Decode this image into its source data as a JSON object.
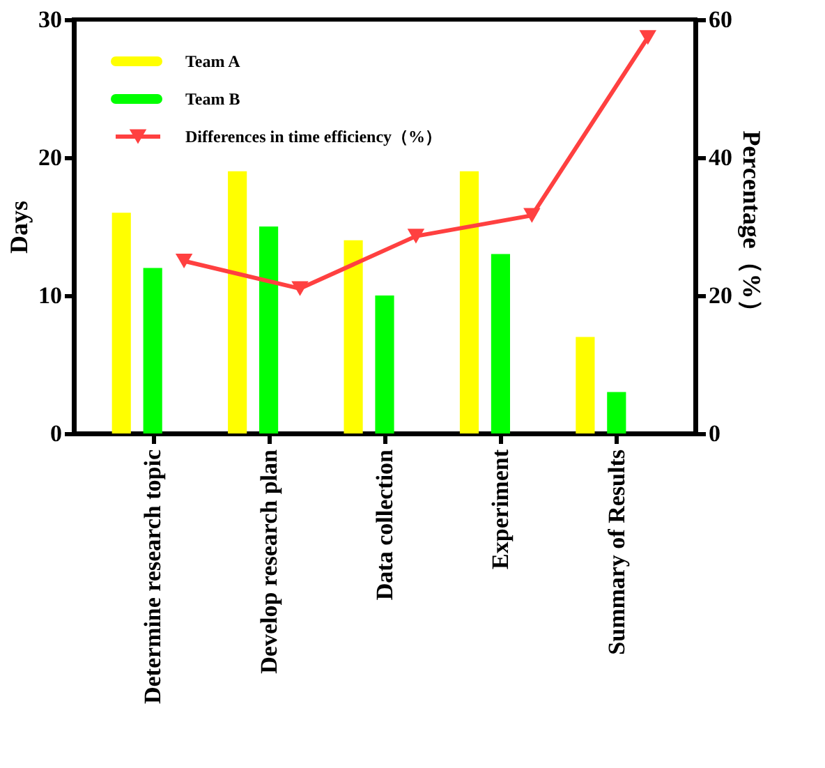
{
  "chart_data": {
    "type": "bar",
    "categories": [
      "Determine research topic",
      "Develop research plan",
      "Data collection",
      "Experiment",
      "Summary of Results"
    ],
    "ylabel": "Days",
    "y2label": "Percentage（%）",
    "ylim": [
      0,
      30
    ],
    "yticks": [
      0,
      10,
      20,
      30
    ],
    "y2lim": [
      0,
      60
    ],
    "y2ticks": [
      0,
      20,
      40,
      60
    ],
    "series": [
      {
        "name": "Team A",
        "color": "#ffff00",
        "values": [
          16,
          19,
          14,
          19,
          7
        ]
      },
      {
        "name": "Team B",
        "color": "#00ff00",
        "values": [
          12,
          15,
          10,
          13,
          3
        ]
      },
      {
        "name": "Differences in time efficiency（%）",
        "type": "line",
        "axis": "y2",
        "color": "#ff4040",
        "marker": "triangle",
        "values": [
          25,
          21,
          28.6,
          31.6,
          57.4
        ]
      }
    ],
    "legend": "top left",
    "grid": false
  }
}
